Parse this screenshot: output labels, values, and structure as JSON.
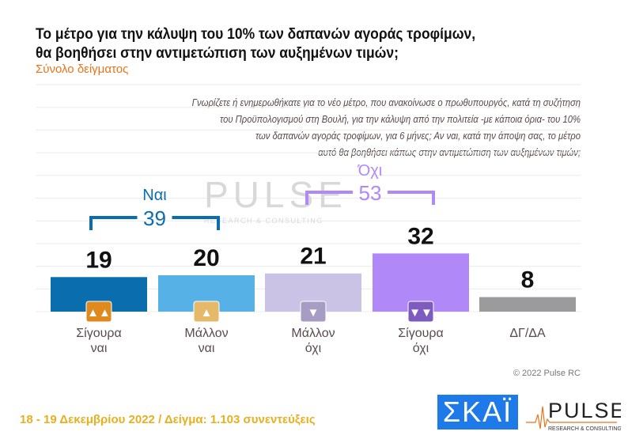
{
  "title_lines": [
    "Το μέτρο για την κάλυψη του 10% των δαπανών αγοράς τροφίμων,",
    "θα βοηθήσει στην αντιμετώπιση των αυξημένων τιμών;"
  ],
  "subtitle": "Σύνολο δείγματος",
  "question_lines": [
    "Γνωρίζετε ή ενημερωθήκατε για το νέο μέτρο, που ανακοίνωσε ο πρωθυπουργός, κατά τη συζήτηση",
    "του Προϋπολογισμού στη Βουλή, για την κάλυψη από την πολιτεία -με κάποια όρια- του 10%",
    "των δαπανών αγοράς τροφίμων, για 6 μήνες; Αν ναι, κατά την άποψη σας, το μέτρο",
    "αυτό θα βοηθήσει κάπως στην αντιμετώπιση των αυξημένων τιμών;"
  ],
  "chart_data": {
    "type": "bar",
    "categories": [
      "Σίγουρα ναι",
      "Μάλλον ναι",
      "Μάλλον όχι",
      "Σίγουρα όχι",
      "ΔΓ/ΔΑ"
    ],
    "category_lines": [
      [
        "Σίγουρα",
        "ναι"
      ],
      [
        "Μάλλον",
        "ναι"
      ],
      [
        "Μάλλον",
        "όχι"
      ],
      [
        "Σίγουρα",
        "όχι"
      ],
      [
        "ΔΓ/ΔΑ"
      ]
    ],
    "values": [
      19,
      20,
      21,
      32,
      8
    ],
    "colors": [
      "#0a6eae",
      "#56b2e6",
      "#cbc3e6",
      "#b088f8",
      "#9b9b9e"
    ],
    "icons": [
      "double-thumbs-up-icon",
      "thumb-up-icon",
      "thumb-down-icon",
      "double-thumbs-down-icon",
      null
    ],
    "icon_colors": [
      "#e08a1e",
      "#e6b86a",
      "#a79cc4",
      "#7d5bbf",
      null
    ],
    "groups": [
      {
        "label": "Ναι",
        "value": "39",
        "color": "#0a6eae"
      },
      {
        "label": "Όχι",
        "value": "53",
        "color": "#b088f8"
      }
    ],
    "grid": true
  },
  "watermark": "PULSE",
  "copyright": "© 2022 Pulse RC",
  "footer": "18 - 19  Δεκεμβρίου  2022  /  Δείγμα:  1.103 συνεντεύξεις",
  "logos": {
    "skai": "ΣΚΑΪ",
    "pulse": "PULSE",
    "pulse_sub": "RESEARCH & CONSULTING"
  }
}
